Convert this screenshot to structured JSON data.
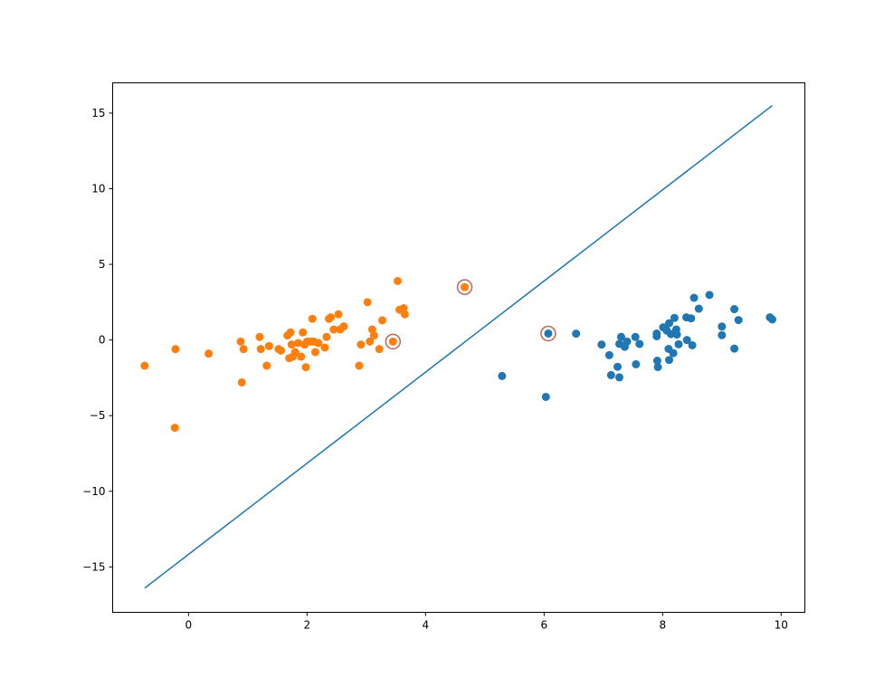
{
  "chart_data": {
    "type": "scatter",
    "title": "",
    "xlabel": "",
    "ylabel": "",
    "xlim": [
      -1.28,
      10.4
    ],
    "ylim": [
      -18.0,
      17.0
    ],
    "x_ticks": [
      0,
      2,
      4,
      6,
      8,
      10
    ],
    "y_ticks": [
      -15,
      -10,
      -5,
      0,
      5,
      10,
      15
    ],
    "x_tick_labels": [
      "0",
      "2",
      "4",
      "6",
      "8",
      "10"
    ],
    "y_tick_labels": [
      "−15",
      "−10",
      "−5",
      "0",
      "5",
      "10",
      "15"
    ],
    "grid": false,
    "legend": "none",
    "colors": {
      "series_a": "#1f77b4",
      "series_b": "#ff7f0e",
      "line": "#1f77b4",
      "support_ring": "#c0645a"
    },
    "series": [
      {
        "marker": "circle",
        "color": "#1f77b4",
        "points": [
          [
            5.29,
            -2.38
          ],
          [
            6.03,
            -3.76
          ],
          [
            6.07,
            0.43
          ],
          [
            6.54,
            0.42
          ],
          [
            6.97,
            -0.3
          ],
          [
            7.1,
            -1.0
          ],
          [
            7.13,
            -2.32
          ],
          [
            7.24,
            -1.77
          ],
          [
            7.27,
            -2.47
          ],
          [
            7.27,
            -0.26
          ],
          [
            7.3,
            0.21
          ],
          [
            7.36,
            -0.45
          ],
          [
            7.4,
            -0.1
          ],
          [
            7.54,
            0.2
          ],
          [
            7.55,
            -1.6
          ],
          [
            7.61,
            -0.26
          ],
          [
            7.9,
            0.25
          ],
          [
            7.9,
            0.43
          ],
          [
            7.91,
            -1.37
          ],
          [
            7.92,
            -1.79
          ],
          [
            8.01,
            0.84
          ],
          [
            8.07,
            0.62
          ],
          [
            8.1,
            -0.59
          ],
          [
            8.11,
            -1.32
          ],
          [
            8.11,
            1.11
          ],
          [
            8.14,
            0.39
          ],
          [
            8.18,
            -0.87
          ],
          [
            8.2,
            1.46
          ],
          [
            8.23,
            0.7
          ],
          [
            8.24,
            0.36
          ],
          [
            8.27,
            -0.28
          ],
          [
            8.4,
            1.5
          ],
          [
            8.41,
            0.0
          ],
          [
            8.48,
            1.43
          ],
          [
            8.5,
            -0.35
          ],
          [
            8.53,
            2.79
          ],
          [
            8.61,
            2.07
          ],
          [
            8.79,
            2.98
          ],
          [
            9.0,
            0.89
          ],
          [
            9.0,
            0.32
          ],
          [
            9.21,
            2.04
          ],
          [
            9.21,
            -0.57
          ],
          [
            9.28,
            1.32
          ],
          [
            9.81,
            1.5
          ],
          [
            9.85,
            1.36
          ]
        ]
      },
      {
        "marker": "circle",
        "color": "#ff7f0e",
        "points": [
          [
            -0.74,
            -1.7
          ],
          [
            -0.23,
            -5.8
          ],
          [
            -0.22,
            -0.6
          ],
          [
            0.34,
            -0.9
          ],
          [
            0.88,
            -0.1
          ],
          [
            0.9,
            -2.8
          ],
          [
            0.93,
            -0.6
          ],
          [
            1.2,
            0.2
          ],
          [
            1.22,
            -0.6
          ],
          [
            1.32,
            -1.7
          ],
          [
            1.36,
            -0.4
          ],
          [
            1.52,
            -0.6
          ],
          [
            1.56,
            -0.7
          ],
          [
            1.67,
            0.3
          ],
          [
            1.7,
            -1.2
          ],
          [
            1.72,
            0.5
          ],
          [
            1.74,
            -0.3
          ],
          [
            1.76,
            -1.1
          ],
          [
            1.8,
            -0.8
          ],
          [
            1.85,
            -0.2
          ],
          [
            1.9,
            -1.1
          ],
          [
            1.93,
            0.5
          ],
          [
            1.96,
            -0.3
          ],
          [
            1.98,
            -1.8
          ],
          [
            2.0,
            -0.1
          ],
          [
            2.06,
            -0.1
          ],
          [
            2.09,
            1.4
          ],
          [
            2.11,
            -0.1
          ],
          [
            2.14,
            -0.8
          ],
          [
            2.19,
            -0.2
          ],
          [
            2.3,
            -0.5
          ],
          [
            2.33,
            0.2
          ],
          [
            2.37,
            1.4
          ],
          [
            2.4,
            1.5
          ],
          [
            2.45,
            0.7
          ],
          [
            2.53,
            1.7
          ],
          [
            2.56,
            0.7
          ],
          [
            2.62,
            0.9
          ],
          [
            2.88,
            -1.7
          ],
          [
            2.91,
            -0.3
          ],
          [
            3.02,
            2.5
          ],
          [
            3.06,
            -0.1
          ],
          [
            3.1,
            0.7
          ],
          [
            3.13,
            0.3
          ],
          [
            3.22,
            -0.6
          ],
          [
            3.27,
            1.3
          ],
          [
            3.45,
            -0.1
          ],
          [
            3.53,
            3.9
          ],
          [
            3.56,
            2.0
          ],
          [
            3.63,
            2.1
          ],
          [
            3.65,
            1.7
          ],
          [
            4.66,
            3.5
          ]
        ]
      }
    ],
    "support_vectors": [
      [
        3.45,
        -0.1
      ],
      [
        4.66,
        3.5
      ],
      [
        6.07,
        0.43
      ]
    ],
    "decision_line": {
      "x": [
        -0.74,
        9.85
      ],
      "y": [
        -16.4,
        15.5
      ]
    }
  }
}
